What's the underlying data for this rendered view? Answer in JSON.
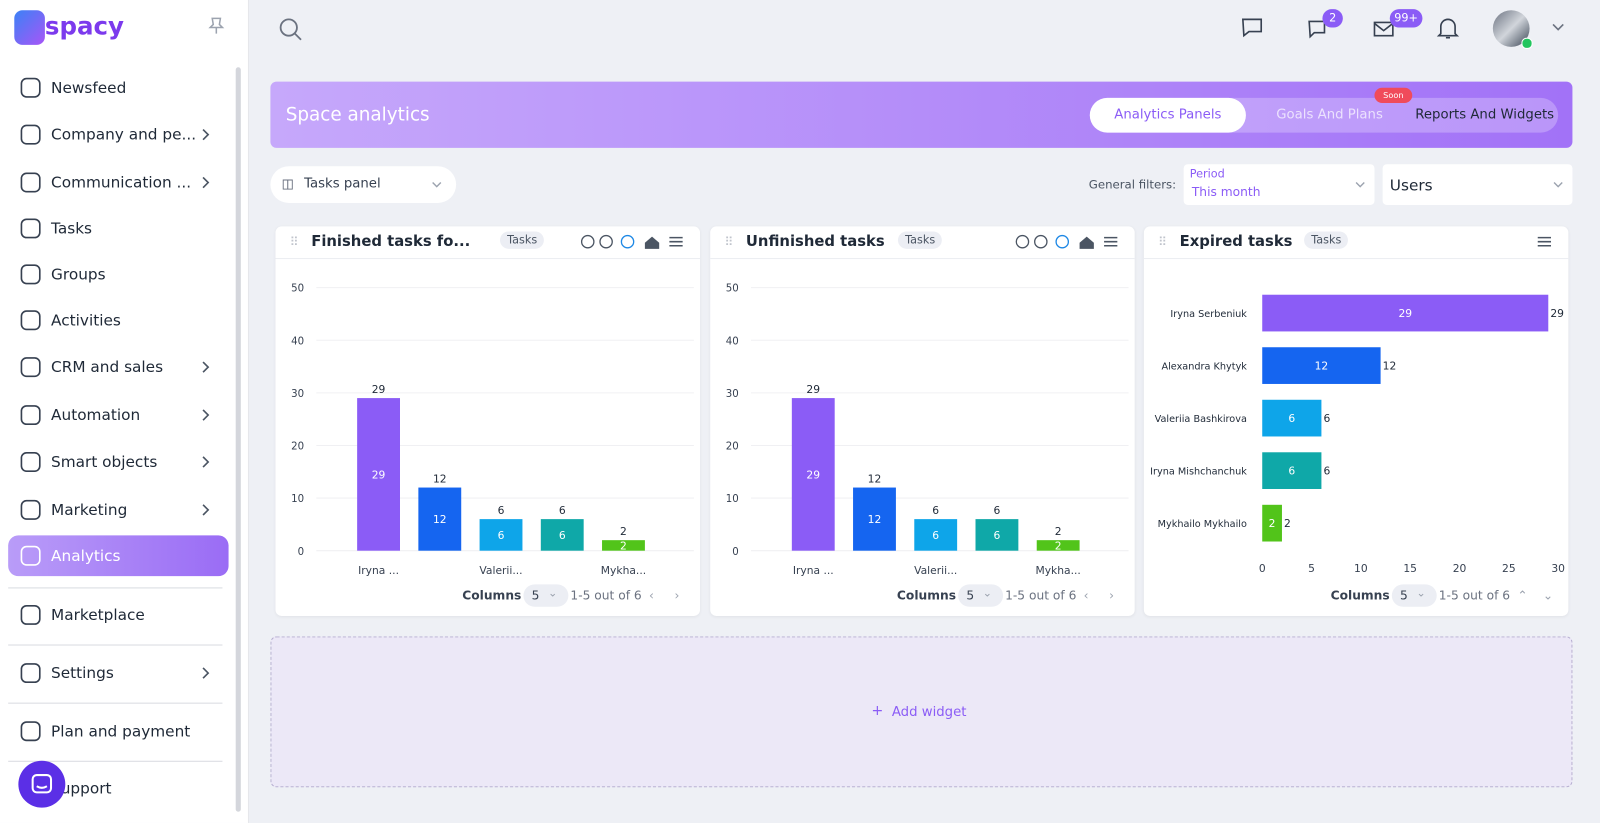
{
  "sidebar": {
    "logo": "spacy",
    "items": [
      "Newsfeed",
      "Company and pe...",
      "Communication ...",
      "Tasks",
      "Groups",
      "Activities",
      "CRM and sales",
      "Automation",
      "Smart objects",
      "Marketing",
      "Analytics",
      "Marketplace",
      "Settings",
      "Plan and payment",
      "Support"
    ]
  },
  "header": {
    "badges": [
      "2",
      "99+"
    ]
  },
  "banner": {
    "title": "Space analytics",
    "tabs": [
      "Analytics Panels",
      "Goals And Plans",
      "Reports And Widgets"
    ],
    "soon": "Soon"
  },
  "toolbar": {
    "panel": "Tasks panel",
    "filters_label": "General filters:",
    "period_label": "Period",
    "period_value": "This month",
    "users": "Users"
  },
  "chart_data": [
    {
      "type": "bar",
      "title": "Finished tasks fo...",
      "tag": "Tasks",
      "categories": [
        "Iryna ...",
        null,
        "Valerii...",
        null,
        "Mykha..."
      ],
      "values": [
        29,
        12,
        6,
        6,
        2
      ],
      "colors": [
        "#8b5cf6",
        "#1565f0",
        "#0ea5e9",
        "#0fa8a8",
        "#52c41a"
      ],
      "ylim": [
        0,
        50
      ],
      "yticks": [
        0,
        10,
        20,
        30,
        40,
        50
      ],
      "grid": true,
      "footer": {
        "columns_label": "Columns",
        "columns_value": 5,
        "range": "1-5 out of 6"
      }
    },
    {
      "type": "bar",
      "title": "Unfinished tasks",
      "tag": "Tasks",
      "categories": [
        "Iryna ...",
        null,
        "Valerii...",
        null,
        "Mykha..."
      ],
      "values": [
        29,
        12,
        6,
        6,
        2
      ],
      "colors": [
        "#8b5cf6",
        "#1565f0",
        "#0ea5e9",
        "#0fa8a8",
        "#52c41a"
      ],
      "ylim": [
        0,
        50
      ],
      "yticks": [
        0,
        10,
        20,
        30,
        40,
        50
      ],
      "grid": true,
      "footer": {
        "columns_label": "Columns",
        "columns_value": 5,
        "range": "1-5 out of 6"
      }
    },
    {
      "type": "barh",
      "title": "Expired tasks",
      "tag": "Tasks",
      "categories": [
        "Iryna Serbeniuk",
        "Alexandra Khytyk",
        "Valeriia Bashkirova",
        "Iryna Mishchanchuk",
        "Mykhailo Mykhailo"
      ],
      "values": [
        29,
        12,
        6,
        6,
        2
      ],
      "colors": [
        "#8b5cf6",
        "#1565f0",
        "#0ea5e9",
        "#0fa8a8",
        "#52c41a"
      ],
      "xlim": [
        0,
        30
      ],
      "xticks": [
        0,
        5,
        10,
        15,
        20,
        25,
        30
      ],
      "grid": false,
      "footer": {
        "columns_label": "Columns",
        "columns_value": 5,
        "range": "1-5 out of 6"
      }
    }
  ],
  "add_widget": "Add widget"
}
